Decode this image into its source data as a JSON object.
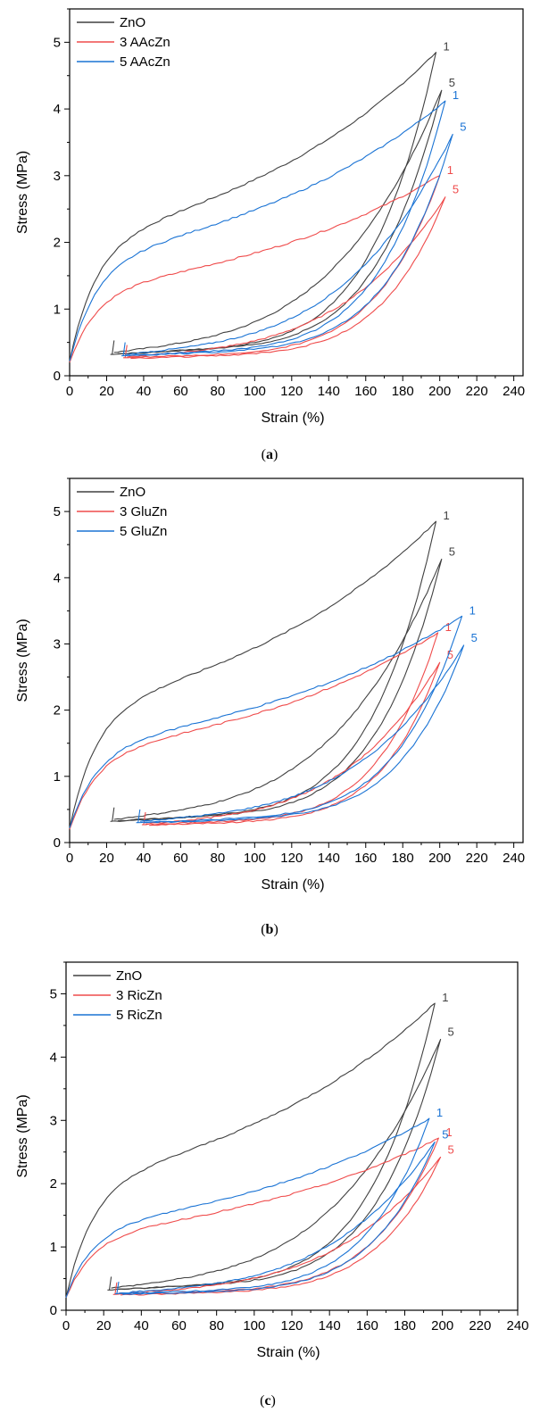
{
  "colors": {
    "zno": "#404040",
    "three": "#ef4b4b",
    "five": "#1a73d4"
  },
  "chart_data": [
    {
      "panel": "a",
      "type": "line",
      "caption_open": "(",
      "caption_letter": "a",
      "caption_close": ")",
      "xlabel": "Strain (%)",
      "ylabel": "Stress (MPa)",
      "xlim": [
        0,
        245
      ],
      "ylim": [
        0,
        5.5
      ],
      "xticks": [
        0,
        20,
        40,
        60,
        80,
        100,
        120,
        140,
        160,
        180,
        200,
        220,
        240
      ],
      "yticks": [
        0,
        1,
        2,
        3,
        4,
        5
      ],
      "grid": false,
      "legend": "top-left",
      "series": [
        {
          "name": "ZnO",
          "color_key": "zno",
          "cycle1": {
            "label": "1",
            "start": [
              0,
              0.22
            ],
            "max": [
              198,
              4.85
            ],
            "unload_end": [
              22,
              0.32
            ]
          },
          "cycle5": {
            "label": "5",
            "start": [
              24,
              0.35
            ],
            "max": [
              201,
              4.28
            ]
          }
        },
        {
          "name": "3 AAcZn",
          "color_key": "three",
          "cycle1": {
            "label": "1",
            "start": [
              0,
              0.2
            ],
            "max": [
              200,
              3.0
            ],
            "unload_end": [
              29,
              0.27
            ]
          },
          "cycle5": {
            "label": "5",
            "start": [
              31,
              0.28
            ],
            "max": [
              203,
              2.68
            ]
          }
        },
        {
          "name": "5 AAcZn",
          "color_key": "five",
          "cycle1": {
            "label": "1",
            "start": [
              0,
              0.22
            ],
            "max": [
              203,
              4.12
            ],
            "unload_end": [
              28,
              0.3
            ]
          },
          "cycle5": {
            "label": "5",
            "start": [
              30,
              0.32
            ],
            "max": [
              207,
              3.62
            ]
          }
        }
      ]
    },
    {
      "panel": "b",
      "type": "line",
      "caption_open": "(",
      "caption_letter": "b",
      "caption_close": ")",
      "xlabel": "Strain (%)",
      "ylabel": "Stress (MPa)",
      "xlim": [
        0,
        245
      ],
      "ylim": [
        0,
        5.5
      ],
      "xticks": [
        0,
        20,
        40,
        60,
        80,
        100,
        120,
        140,
        160,
        180,
        200,
        220,
        240
      ],
      "yticks": [
        0,
        1,
        2,
        3,
        4,
        5
      ],
      "grid": false,
      "legend": "top-left",
      "series": [
        {
          "name": "ZnO",
          "color_key": "zno",
          "cycle1": {
            "label": "1",
            "start": [
              0,
              0.22
            ],
            "max": [
              198,
              4.85
            ],
            "unload_end": [
              22,
              0.32
            ]
          },
          "cycle5": {
            "label": "5",
            "start": [
              24,
              0.35
            ],
            "max": [
              201,
              4.28
            ]
          }
        },
        {
          "name": "3 GluZn",
          "color_key": "three",
          "cycle1": {
            "label": "1",
            "start": [
              0,
              0.2
            ],
            "max": [
              199,
              3.17
            ],
            "unload_end": [
              39,
              0.27
            ]
          },
          "cycle5": {
            "label": "5",
            "start": [
              41,
              0.28
            ],
            "max": [
              200,
              2.72
            ]
          }
        },
        {
          "name": "5 GluZn",
          "color_key": "five",
          "cycle1": {
            "label": "1",
            "start": [
              0,
              0.22
            ],
            "max": [
              212,
              3.42
            ],
            "unload_end": [
              36,
              0.3
            ]
          },
          "cycle5": {
            "label": "5",
            "start": [
              38,
              0.32
            ],
            "max": [
              213,
              2.98
            ]
          }
        }
      ]
    },
    {
      "panel": "c",
      "type": "line",
      "caption_open": "(",
      "caption_letter": "c",
      "caption_close": ")",
      "xlabel": "Strain (%)",
      "ylabel": "Stress (MPa)",
      "xlim": [
        0,
        240
      ],
      "ylim": [
        0,
        5.5
      ],
      "xticks": [
        0,
        20,
        40,
        60,
        80,
        100,
        120,
        140,
        160,
        180,
        200,
        220,
        240
      ],
      "yticks": [
        0,
        1,
        2,
        3,
        4,
        5
      ],
      "grid": false,
      "legend": "top-left",
      "series": [
        {
          "name": "ZnO",
          "color_key": "zno",
          "cycle1": {
            "label": "1",
            "start": [
              0,
              0.2
            ],
            "max": [
              196,
              4.85
            ],
            "unload_end": [
              22,
              0.32
            ]
          },
          "cycle5": {
            "label": "5",
            "start": [
              24,
              0.35
            ],
            "max": [
              199,
              4.28
            ]
          }
        },
        {
          "name": "3 RicZn",
          "color_key": "three",
          "cycle1": {
            "label": "1",
            "start": [
              0,
              0.2
            ],
            "max": [
              198,
              2.72
            ],
            "unload_end": [
              25,
              0.25
            ]
          },
          "cycle5": {
            "label": "5",
            "start": [
              27,
              0.26
            ],
            "max": [
              199,
              2.42
            ]
          }
        },
        {
          "name": "5 RicZn",
          "color_key": "five",
          "cycle1": {
            "label": "1",
            "start": [
              0,
              0.2
            ],
            "max": [
              193,
              3.03
            ],
            "unload_end": [
              26,
              0.26
            ]
          },
          "cycle5": {
            "label": "5",
            "start": [
              28,
              0.27
            ],
            "max": [
              196,
              2.66
            ]
          }
        }
      ]
    }
  ]
}
